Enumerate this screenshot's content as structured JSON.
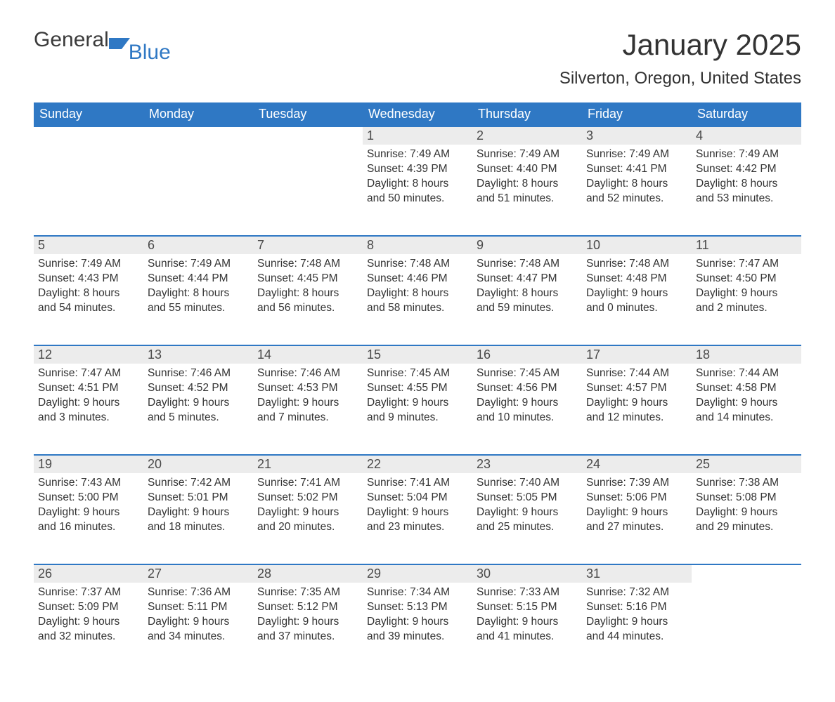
{
  "logo": {
    "text1": "General",
    "text2": "Blue",
    "icon_color": "#2f78c4"
  },
  "title": "January 2025",
  "location": "Silverton, Oregon, United States",
  "header_bg": "#2f78c4",
  "header_fg": "#ffffff",
  "daynum_bg": "#ececec",
  "row_border": "#2f78c4",
  "text_color": "#333333",
  "dow": [
    "Sunday",
    "Monday",
    "Tuesday",
    "Wednesday",
    "Thursday",
    "Friday",
    "Saturday"
  ],
  "weeks": [
    [
      null,
      null,
      null,
      {
        "d": "1",
        "sr": "Sunrise: 7:49 AM",
        "ss": "Sunset: 4:39 PM",
        "dl1": "Daylight: 8 hours",
        "dl2": "and 50 minutes."
      },
      {
        "d": "2",
        "sr": "Sunrise: 7:49 AM",
        "ss": "Sunset: 4:40 PM",
        "dl1": "Daylight: 8 hours",
        "dl2": "and 51 minutes."
      },
      {
        "d": "3",
        "sr": "Sunrise: 7:49 AM",
        "ss": "Sunset: 4:41 PM",
        "dl1": "Daylight: 8 hours",
        "dl2": "and 52 minutes."
      },
      {
        "d": "4",
        "sr": "Sunrise: 7:49 AM",
        "ss": "Sunset: 4:42 PM",
        "dl1": "Daylight: 8 hours",
        "dl2": "and 53 minutes."
      }
    ],
    [
      {
        "d": "5",
        "sr": "Sunrise: 7:49 AM",
        "ss": "Sunset: 4:43 PM",
        "dl1": "Daylight: 8 hours",
        "dl2": "and 54 minutes."
      },
      {
        "d": "6",
        "sr": "Sunrise: 7:49 AM",
        "ss": "Sunset: 4:44 PM",
        "dl1": "Daylight: 8 hours",
        "dl2": "and 55 minutes."
      },
      {
        "d": "7",
        "sr": "Sunrise: 7:48 AM",
        "ss": "Sunset: 4:45 PM",
        "dl1": "Daylight: 8 hours",
        "dl2": "and 56 minutes."
      },
      {
        "d": "8",
        "sr": "Sunrise: 7:48 AM",
        "ss": "Sunset: 4:46 PM",
        "dl1": "Daylight: 8 hours",
        "dl2": "and 58 minutes."
      },
      {
        "d": "9",
        "sr": "Sunrise: 7:48 AM",
        "ss": "Sunset: 4:47 PM",
        "dl1": "Daylight: 8 hours",
        "dl2": "and 59 minutes."
      },
      {
        "d": "10",
        "sr": "Sunrise: 7:48 AM",
        "ss": "Sunset: 4:48 PM",
        "dl1": "Daylight: 9 hours",
        "dl2": "and 0 minutes."
      },
      {
        "d": "11",
        "sr": "Sunrise: 7:47 AM",
        "ss": "Sunset: 4:50 PM",
        "dl1": "Daylight: 9 hours",
        "dl2": "and 2 minutes."
      }
    ],
    [
      {
        "d": "12",
        "sr": "Sunrise: 7:47 AM",
        "ss": "Sunset: 4:51 PM",
        "dl1": "Daylight: 9 hours",
        "dl2": "and 3 minutes."
      },
      {
        "d": "13",
        "sr": "Sunrise: 7:46 AM",
        "ss": "Sunset: 4:52 PM",
        "dl1": "Daylight: 9 hours",
        "dl2": "and 5 minutes."
      },
      {
        "d": "14",
        "sr": "Sunrise: 7:46 AM",
        "ss": "Sunset: 4:53 PM",
        "dl1": "Daylight: 9 hours",
        "dl2": "and 7 minutes."
      },
      {
        "d": "15",
        "sr": "Sunrise: 7:45 AM",
        "ss": "Sunset: 4:55 PM",
        "dl1": "Daylight: 9 hours",
        "dl2": "and 9 minutes."
      },
      {
        "d": "16",
        "sr": "Sunrise: 7:45 AM",
        "ss": "Sunset: 4:56 PM",
        "dl1": "Daylight: 9 hours",
        "dl2": "and 10 minutes."
      },
      {
        "d": "17",
        "sr": "Sunrise: 7:44 AM",
        "ss": "Sunset: 4:57 PM",
        "dl1": "Daylight: 9 hours",
        "dl2": "and 12 minutes."
      },
      {
        "d": "18",
        "sr": "Sunrise: 7:44 AM",
        "ss": "Sunset: 4:58 PM",
        "dl1": "Daylight: 9 hours",
        "dl2": "and 14 minutes."
      }
    ],
    [
      {
        "d": "19",
        "sr": "Sunrise: 7:43 AM",
        "ss": "Sunset: 5:00 PM",
        "dl1": "Daylight: 9 hours",
        "dl2": "and 16 minutes."
      },
      {
        "d": "20",
        "sr": "Sunrise: 7:42 AM",
        "ss": "Sunset: 5:01 PM",
        "dl1": "Daylight: 9 hours",
        "dl2": "and 18 minutes."
      },
      {
        "d": "21",
        "sr": "Sunrise: 7:41 AM",
        "ss": "Sunset: 5:02 PM",
        "dl1": "Daylight: 9 hours",
        "dl2": "and 20 minutes."
      },
      {
        "d": "22",
        "sr": "Sunrise: 7:41 AM",
        "ss": "Sunset: 5:04 PM",
        "dl1": "Daylight: 9 hours",
        "dl2": "and 23 minutes."
      },
      {
        "d": "23",
        "sr": "Sunrise: 7:40 AM",
        "ss": "Sunset: 5:05 PM",
        "dl1": "Daylight: 9 hours",
        "dl2": "and 25 minutes."
      },
      {
        "d": "24",
        "sr": "Sunrise: 7:39 AM",
        "ss": "Sunset: 5:06 PM",
        "dl1": "Daylight: 9 hours",
        "dl2": "and 27 minutes."
      },
      {
        "d": "25",
        "sr": "Sunrise: 7:38 AM",
        "ss": "Sunset: 5:08 PM",
        "dl1": "Daylight: 9 hours",
        "dl2": "and 29 minutes."
      }
    ],
    [
      {
        "d": "26",
        "sr": "Sunrise: 7:37 AM",
        "ss": "Sunset: 5:09 PM",
        "dl1": "Daylight: 9 hours",
        "dl2": "and 32 minutes."
      },
      {
        "d": "27",
        "sr": "Sunrise: 7:36 AM",
        "ss": "Sunset: 5:11 PM",
        "dl1": "Daylight: 9 hours",
        "dl2": "and 34 minutes."
      },
      {
        "d": "28",
        "sr": "Sunrise: 7:35 AM",
        "ss": "Sunset: 5:12 PM",
        "dl1": "Daylight: 9 hours",
        "dl2": "and 37 minutes."
      },
      {
        "d": "29",
        "sr": "Sunrise: 7:34 AM",
        "ss": "Sunset: 5:13 PM",
        "dl1": "Daylight: 9 hours",
        "dl2": "and 39 minutes."
      },
      {
        "d": "30",
        "sr": "Sunrise: 7:33 AM",
        "ss": "Sunset: 5:15 PM",
        "dl1": "Daylight: 9 hours",
        "dl2": "and 41 minutes."
      },
      {
        "d": "31",
        "sr": "Sunrise: 7:32 AM",
        "ss": "Sunset: 5:16 PM",
        "dl1": "Daylight: 9 hours",
        "dl2": "and 44 minutes."
      },
      null
    ]
  ]
}
